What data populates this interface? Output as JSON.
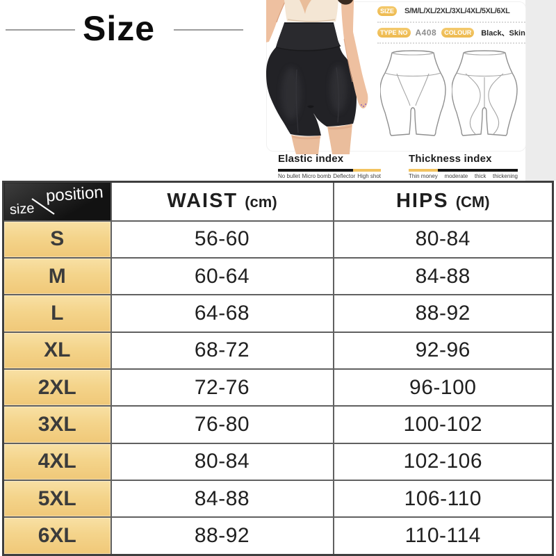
{
  "title": "Size",
  "panel": {
    "size_label": "SIZE",
    "size_values": "S/M/L/XL/2XL/3XL/4XL/5XL/6XL",
    "type_label": "TYPE NO",
    "type_value": "A408",
    "colour_label": "COLOUR",
    "colour_value": "Black、Skin",
    "elastic": {
      "title": "Elastic index",
      "options": [
        "No bullet",
        "Micro bomb",
        "Deflector",
        "High shot"
      ],
      "active_option": "High shot"
    },
    "thickness": {
      "title": "Thickness index",
      "options": [
        "Thin money",
        "moderate",
        "thick",
        "thickening"
      ],
      "active_option": "Thin money"
    }
  },
  "table": {
    "corner": {
      "row_label": "size",
      "col_label": "position"
    },
    "columns": [
      {
        "name": "WAIST",
        "unit": "(cm)"
      },
      {
        "name": "HIPS",
        "unit": "(CM)"
      }
    ],
    "rows": [
      {
        "size": "S",
        "waist": "56-60",
        "hips": "80-84"
      },
      {
        "size": "M",
        "waist": "60-64",
        "hips": "84-88"
      },
      {
        "size": "L",
        "waist": "64-68",
        "hips": "88-92"
      },
      {
        "size": "XL",
        "waist": "68-72",
        "hips": "92-96"
      },
      {
        "size": "2XL",
        "waist": "72-76",
        "hips": "96-100"
      },
      {
        "size": "3XL",
        "waist": "76-80",
        "hips": "100-102"
      },
      {
        "size": "4XL",
        "waist": "80-84",
        "hips": "102-106"
      },
      {
        "size": "5XL",
        "waist": "84-88",
        "hips": "106-110"
      },
      {
        "size": "6XL",
        "waist": "88-92",
        "hips": "110-114"
      }
    ]
  },
  "colors": {
    "badge_gold": "#efbf55",
    "bar_gold": "#f2c360",
    "bar_dark": "#141414",
    "row_label_yellow": "#f6d48d",
    "header_dark": "#1a1a1a"
  }
}
